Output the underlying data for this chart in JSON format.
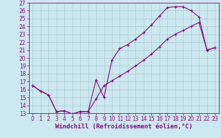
{
  "xlabel": "Windchill (Refroidissement éolien,°C)",
  "background_color": "#cce8f0",
  "grid_color": "#aacccc",
  "line_color": "#880088",
  "xlim": [
    -0.5,
    23.5
  ],
  "ylim": [
    13,
    27
  ],
  "xticks": [
    0,
    1,
    2,
    3,
    4,
    5,
    6,
    7,
    8,
    9,
    10,
    11,
    12,
    13,
    14,
    15,
    16,
    17,
    18,
    19,
    20,
    21,
    22,
    23
  ],
  "yticks": [
    13,
    14,
    15,
    16,
    17,
    18,
    19,
    20,
    21,
    22,
    23,
    24,
    25,
    26,
    27
  ],
  "line1_x": [
    0,
    1,
    2,
    3,
    4,
    5,
    6,
    7,
    8,
    9,
    10,
    11,
    12,
    13,
    14,
    15,
    16,
    17,
    18,
    19,
    20,
    21,
    22,
    23
  ],
  "line1_y": [
    16.5,
    15.8,
    15.3,
    13.2,
    13.3,
    12.9,
    13.2,
    13.2,
    17.2,
    15.0,
    19.7,
    21.2,
    21.7,
    22.4,
    23.2,
    24.2,
    25.3,
    26.4,
    26.5,
    26.5,
    26.0,
    25.2,
    21.0,
    21.3
  ],
  "line2_x": [
    0,
    1,
    2,
    3,
    4,
    5,
    6,
    7,
    8,
    9,
    10,
    11,
    12,
    13,
    14,
    15,
    16,
    17,
    18,
    19,
    20,
    21,
    22,
    23
  ],
  "line2_y": [
    16.5,
    15.8,
    15.3,
    13.2,
    13.3,
    12.9,
    13.2,
    13.2,
    14.8,
    16.5,
    17.1,
    17.7,
    18.3,
    19.0,
    19.7,
    20.5,
    21.4,
    22.4,
    23.0,
    23.5,
    24.0,
    24.5,
    21.0,
    21.3
  ],
  "xlabel_fontsize": 6.5,
  "tick_fontsize": 5.5,
  "xlabel_color": "#880088",
  "tick_color": "#880088",
  "axis_color": "#880088",
  "marker_size": 3,
  "line_width": 0.8
}
